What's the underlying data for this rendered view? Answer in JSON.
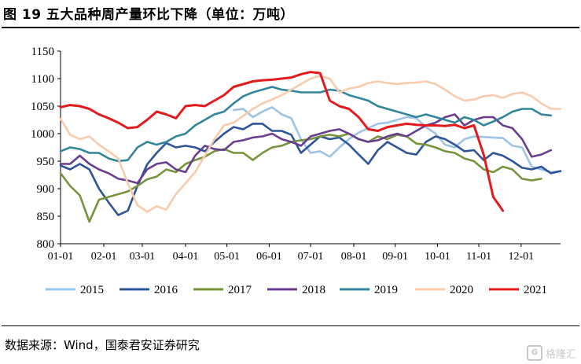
{
  "header": {
    "title": "图 19 五大品种周产量环比下降（单位：万吨）"
  },
  "footer": {
    "source": "数据来源：Wind，国泰君安证券研究",
    "watermark": "格隆汇"
  },
  "chart_data": {
    "type": "line",
    "title": "五大品种周产量环比下降",
    "unit": "万吨",
    "ylim": [
      800,
      1150
    ],
    "yticks": [
      800,
      850,
      900,
      950,
      1000,
      1050,
      1100,
      1150
    ],
    "xlim": [
      0,
      52
    ],
    "xticks": [
      {
        "x": 0,
        "label": "01-01"
      },
      {
        "x": 4.5,
        "label": "02-01"
      },
      {
        "x": 8.5,
        "label": "03-01"
      },
      {
        "x": 13,
        "label": "04-01"
      },
      {
        "x": 17.3,
        "label": "05-01"
      },
      {
        "x": 21.7,
        "label": "06-01"
      },
      {
        "x": 26,
        "label": "07-01"
      },
      {
        "x": 30.5,
        "label": "08-01"
      },
      {
        "x": 34.8,
        "label": "09-01"
      },
      {
        "x": 39.2,
        "label": "10-01"
      },
      {
        "x": 43.5,
        "label": "11-01"
      },
      {
        "x": 47.9,
        "label": "12-01"
      }
    ],
    "grid": false,
    "legend_position": "bottom",
    "series": [
      {
        "name": "2015",
        "color": "#9dc3e6",
        "start": 18,
        "values": [
          1043,
          1045,
          1030,
          1040,
          1048,
          1035,
          1028,
          990,
          965,
          968,
          958,
          975,
          990,
          1002,
          1010,
          1018,
          1020,
          1025,
          1030,
          1028,
          1012,
          1000,
          980,
          975,
          990,
          995,
          994,
          993,
          992,
          978,
          975,
          940,
          935,
          930,
          932
        ]
      },
      {
        "name": "2016",
        "color": "#2e5597",
        "start": 0,
        "values": [
          942,
          935,
          945,
          935,
          900,
          875,
          852,
          860,
          905,
          944,
          965,
          983,
          975,
          978,
          975,
          968,
          985,
          1000,
          1012,
          1008,
          1018,
          1018,
          1005,
          1005,
          998,
          965,
          980,
          995,
          990,
          993,
          980,
          962,
          945,
          970,
          985,
          975,
          965,
          962,
          985,
          995,
          990,
          980,
          968,
          970,
          952,
          965,
          960,
          950,
          938,
          935,
          940,
          928,
          932
        ]
      },
      {
        "name": "2017",
        "color": "#77933c",
        "start": 0,
        "values": [
          928,
          905,
          888,
          840,
          880,
          885,
          890,
          895,
          905,
          917,
          922,
          935,
          930,
          945,
          952,
          958,
          968,
          972,
          965,
          965,
          952,
          965,
          975,
          978,
          985,
          988,
          990,
          995,
          998,
          995,
          1000,
          990,
          985,
          995,
          990,
          998,
          995,
          982,
          980,
          975,
          968,
          965,
          955,
          950,
          935,
          930,
          940,
          935,
          918,
          915,
          918
        ]
      },
      {
        "name": "2018",
        "color": "#6a3d8f",
        "start": 0,
        "values": [
          945,
          945,
          960,
          945,
          935,
          928,
          918,
          915,
          910,
          935,
          945,
          948,
          935,
          930,
          960,
          978,
          972,
          970,
          985,
          988,
          993,
          995,
          1000,
          990,
          985,
          978,
          995,
          1000,
          1005,
          1008,
          1000,
          990,
          985,
          988,
          995,
          1000,
          995,
          1005,
          1015,
          1020,
          1030,
          1035,
          1015,
          1025,
          1030,
          1030,
          1015,
          1010,
          990,
          958,
          962,
          970
        ]
      },
      {
        "name": "2019",
        "color": "#31869b",
        "start": 0,
        "values": [
          968,
          975,
          972,
          965,
          965,
          955,
          950,
          952,
          975,
          985,
          980,
          985,
          995,
          1000,
          1015,
          1025,
          1035,
          1040,
          1055,
          1068,
          1075,
          1080,
          1085,
          1080,
          1078,
          1075,
          1075,
          1075,
          1080,
          1078,
          1070,
          1065,
          1060,
          1050,
          1045,
          1040,
          1035,
          1030,
          1035,
          1030,
          1025,
          1020,
          1030,
          1025,
          1015,
          1022,
          1030,
          1040,
          1045,
          1045,
          1035,
          1033
        ]
      },
      {
        "name": "2020",
        "color": "#f9cbad",
        "start": 0,
        "values": [
          1027,
          998,
          990,
          995,
          980,
          968,
          955,
          910,
          870,
          858,
          868,
          862,
          890,
          910,
          930,
          960,
          990,
          1015,
          1020,
          1032,
          1045,
          1055,
          1062,
          1070,
          1080,
          1090,
          1100,
          1105,
          1100,
          1075,
          1082,
          1085,
          1092,
          1095,
          1092,
          1090,
          1092,
          1093,
          1095,
          1090,
          1080,
          1068,
          1060,
          1062,
          1068,
          1070,
          1065,
          1072,
          1075,
          1068,
          1055,
          1045,
          1045
        ]
      },
      {
        "name": "2021",
        "color": "#e31a1c",
        "start": 0,
        "values": [
          1048,
          1052,
          1050,
          1045,
          1035,
          1028,
          1020,
          1010,
          1012,
          1025,
          1040,
          1035,
          1028,
          1050,
          1052,
          1050,
          1060,
          1070,
          1085,
          1090,
          1095,
          1097,
          1098,
          1100,
          1102,
          1108,
          1112,
          1110,
          1060,
          1050,
          1045,
          1030,
          1008,
          1005,
          1012,
          1015,
          1018,
          1016,
          1015,
          1015,
          1014,
          1016,
          1010,
          1015,
          962,
          885,
          860
        ]
      }
    ]
  }
}
